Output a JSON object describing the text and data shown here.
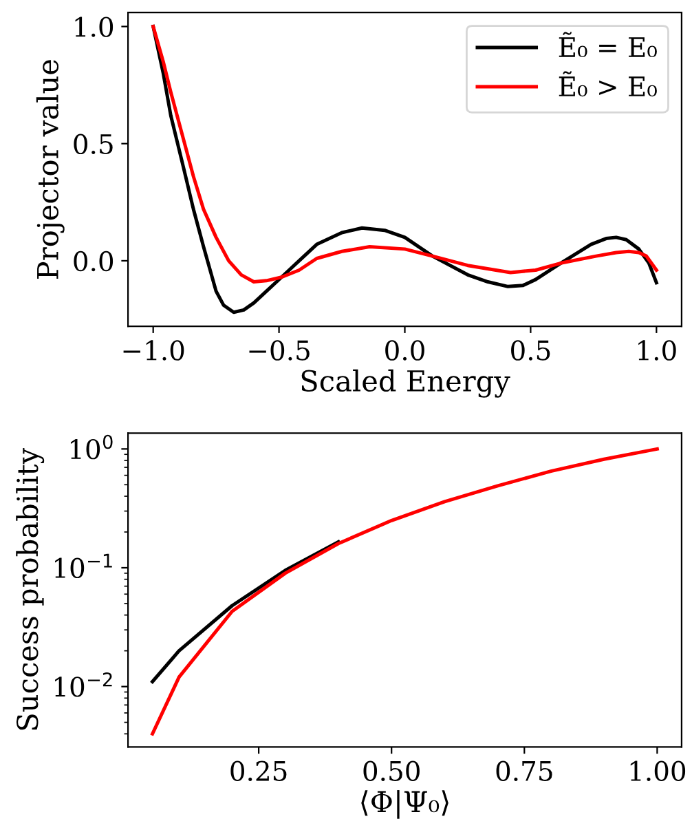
{
  "chart_data": [
    {
      "type": "line",
      "xlabel": "Scaled Energy",
      "ylabel": "Projector value",
      "xlim": [
        -1.1,
        1.1
      ],
      "ylim": [
        -0.28,
        1.06
      ],
      "xticks": [
        {
          "value": -1.0,
          "label": "−1.0"
        },
        {
          "value": -0.5,
          "label": "−0.5"
        },
        {
          "value": 0.0,
          "label": "0.0"
        },
        {
          "value": 0.5,
          "label": "0.5"
        },
        {
          "value": 1.0,
          "label": "1.0"
        }
      ],
      "yticks": [
        {
          "value": 0.0,
          "label": "0.0"
        },
        {
          "value": 0.5,
          "label": "0.5"
        },
        {
          "value": 1.0,
          "label": "1.0"
        }
      ],
      "grid": false,
      "legend": "top right",
      "line_style": "solid",
      "marker": "none",
      "series": [
        {
          "name": "Ẽ₀ = E₀",
          "color": "#000000",
          "x": [
            -1.0,
            -0.96,
            -0.93,
            -0.88,
            -0.84,
            -0.8,
            -0.75,
            -0.72,
            -0.68,
            -0.64,
            -0.6,
            -0.55,
            -0.49,
            -0.42,
            -0.35,
            -0.25,
            -0.17,
            -0.08,
            0.0,
            0.11,
            0.25,
            0.33,
            0.41,
            0.47,
            0.52,
            0.62,
            0.74,
            0.8,
            0.84,
            0.88,
            0.93,
            0.97,
            1.0
          ],
          "values": [
            1.0,
            0.8,
            0.62,
            0.4,
            0.22,
            0.06,
            -0.13,
            -0.19,
            -0.22,
            -0.21,
            -0.18,
            -0.13,
            -0.07,
            0.0,
            0.07,
            0.12,
            0.14,
            0.13,
            0.1,
            0.02,
            -0.06,
            -0.09,
            -0.11,
            -0.105,
            -0.08,
            -0.01,
            0.07,
            0.095,
            0.1,
            0.09,
            0.05,
            -0.01,
            -0.094
          ]
        },
        {
          "name": "Ẽ₀ > E₀",
          "color": "#ff0000",
          "x": [
            -1.0,
            -0.96,
            -0.93,
            -0.88,
            -0.84,
            -0.8,
            -0.75,
            -0.7,
            -0.65,
            -0.6,
            -0.55,
            -0.49,
            -0.42,
            -0.35,
            -0.25,
            -0.14,
            0.0,
            0.11,
            0.25,
            0.42,
            0.52,
            0.62,
            0.76,
            0.84,
            0.89,
            0.93,
            0.96,
            1.0
          ],
          "values": [
            1.0,
            0.85,
            0.72,
            0.52,
            0.36,
            0.22,
            0.1,
            0.0,
            -0.06,
            -0.09,
            -0.085,
            -0.07,
            -0.04,
            0.01,
            0.04,
            0.06,
            0.05,
            0.02,
            -0.02,
            -0.05,
            -0.04,
            -0.01,
            0.02,
            0.035,
            0.04,
            0.035,
            0.02,
            -0.04
          ]
        }
      ]
    },
    {
      "type": "line",
      "xlabel": "⟨Φ|Ψ₀⟩",
      "ylabel": "Success probability",
      "log": "y",
      "xlim": [
        0.004,
        1.046
      ],
      "ylim": [
        0.0031,
        1.36
      ],
      "xticks": [
        {
          "value": 0.25,
          "label": "0.25"
        },
        {
          "value": 0.5,
          "label": "0.50"
        },
        {
          "value": 0.75,
          "label": "0.75"
        },
        {
          "value": 1.0,
          "label": "1.00"
        }
      ],
      "yticks": [
        {
          "value": 0.01,
          "label": "10$^{−2}$"
        },
        {
          "value": 0.1,
          "label": "10$^{−1}$"
        },
        {
          "value": 1,
          "label": "10$^{0}$"
        }
      ],
      "grid": false,
      "line_style": "solid",
      "marker": "none",
      "series": [
        {
          "color": "#000000",
          "x": [
            0.05,
            0.1,
            0.2,
            0.3,
            0.4
          ],
          "values": [
            0.011,
            0.02,
            0.048,
            0.095,
            0.165
          ]
        },
        {
          "color": "#ff0000",
          "x": [
            0.05,
            0.1,
            0.2,
            0.3,
            0.4,
            0.5,
            0.6,
            0.7,
            0.8,
            0.9,
            1.0
          ],
          "values": [
            0.004,
            0.012,
            0.043,
            0.09,
            0.16,
            0.25,
            0.36,
            0.49,
            0.65,
            0.82,
            1.0
          ]
        }
      ]
    }
  ]
}
